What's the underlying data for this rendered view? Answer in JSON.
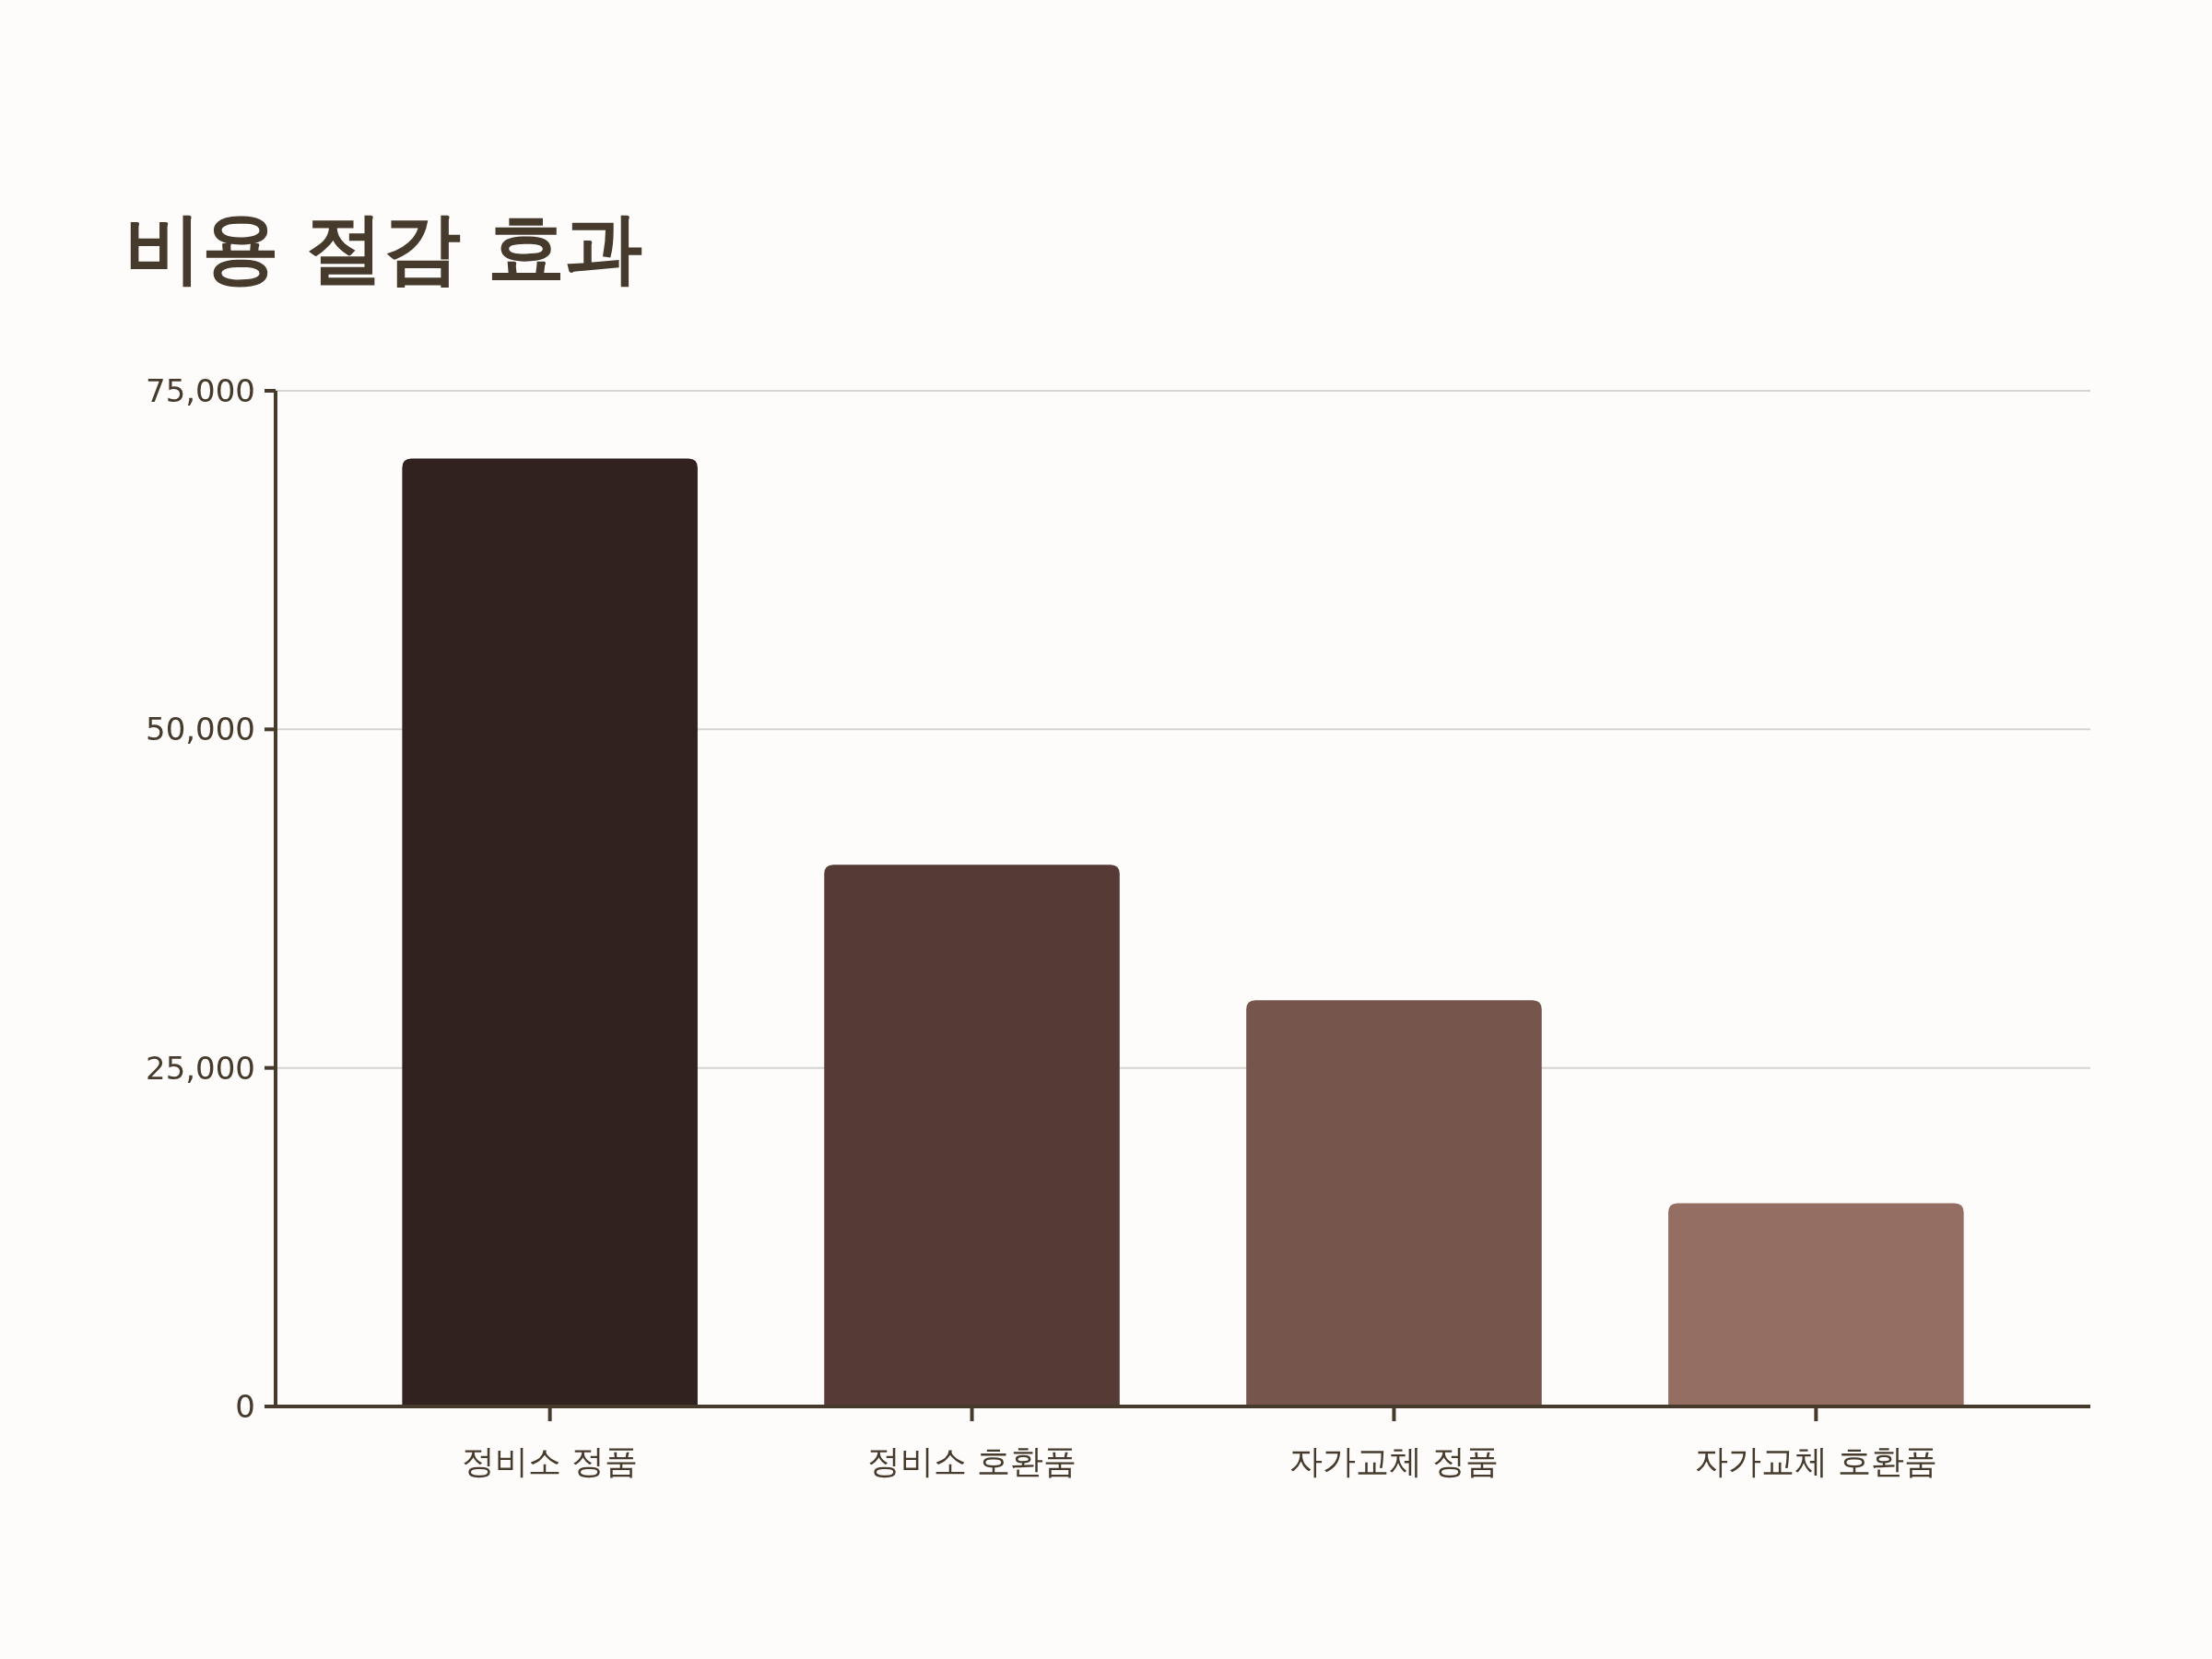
{
  "chart_data": {
    "type": "bar",
    "title": "비용 절감 효과",
    "categories": [
      "정비소 정품",
      "정비소 호환품",
      "자가교체 정품",
      "자가교체 호환품"
    ],
    "values": [
      70000,
      40000,
      30000,
      15000
    ],
    "colors": [
      "#312220",
      "#553a35",
      "#75554c",
      "#956e63"
    ],
    "ylim": [
      0,
      75000
    ],
    "yticks": [
      0,
      {
        "value": 25000,
        "label": "25,000"
      },
      {
        "value": 50000,
        "label": "50,000"
      },
      {
        "value": 75000,
        "label": "75,000"
      }
    ],
    "grid": "y"
  }
}
